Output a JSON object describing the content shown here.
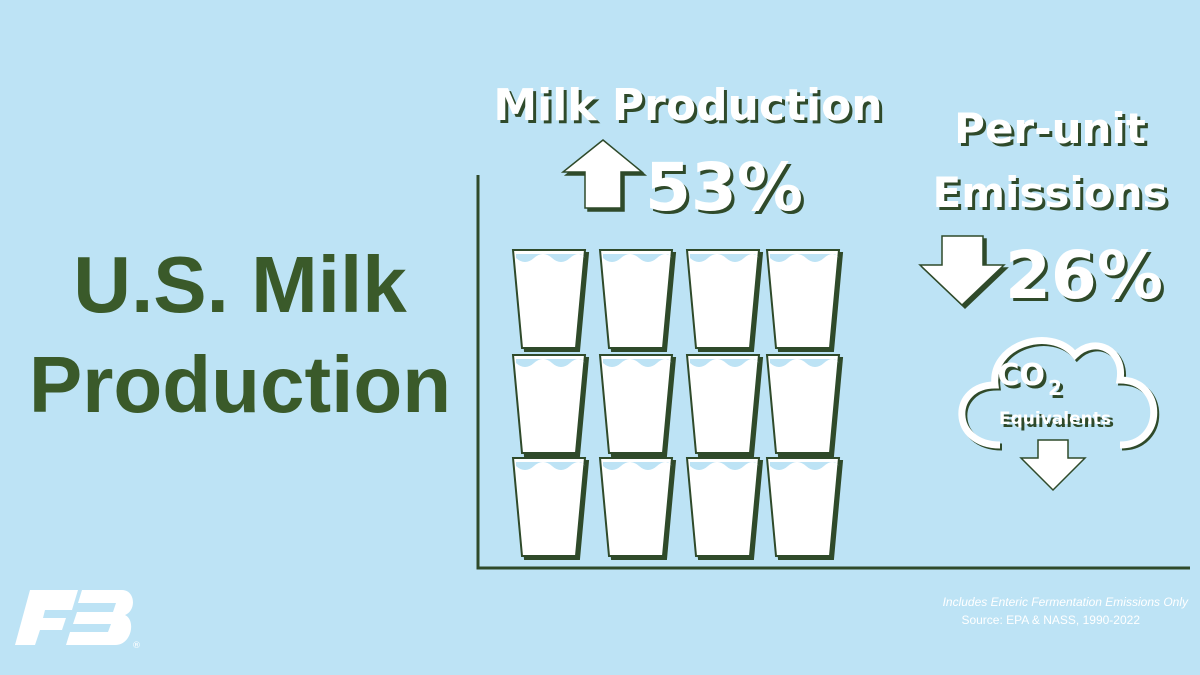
{
  "title": {
    "lines": [
      "U.S. Milk",
      "Production"
    ]
  },
  "milk": {
    "label": "Milk Production",
    "change": "53%"
  },
  "emissions": {
    "label_lines": [
      "Per-unit",
      "Emissions"
    ],
    "change": "26%",
    "cloud": {
      "gas": "CO",
      "subscript": "2",
      "label": "Equivalents"
    }
  },
  "footer": {
    "note": "Includes Enteric Fermentation Emissions Only",
    "source": "Source:  EPA & NASS, 1990-2022"
  },
  "logo": {
    "mark": "®"
  }
}
